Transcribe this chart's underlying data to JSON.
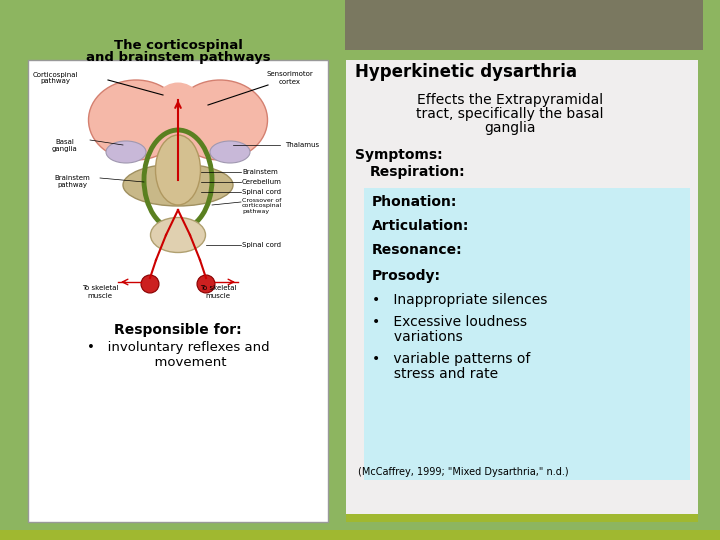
{
  "background_color": "#8db560",
  "header_bar_color": "#7a7860",
  "title": "Hyperkinetic dysarthria",
  "subtitle_line1": "Effects the Extrapyramidal",
  "subtitle_line2": "tract, specifically the basal",
  "subtitle_line3": "ganglia",
  "symptoms_header": "Symptoms:",
  "respiration": "   Respiration:",
  "light_blue_box_color": "#c8eef5",
  "right_panel_bg": "#f0eeee",
  "citation": "(McCaffrey, 1999; \"Mixed Dysarthria,\" n.d.)",
  "bottom_bar_color": "#a0b830",
  "left_panel_bg": "#ffffff",
  "left_title1": "The corticospinal",
  "left_title2": "and brainstem pathways",
  "responsible_header": "Responsible for:",
  "responsible_bullet1": "•   involuntary reflexes and",
  "responsible_bullet2": "      movement",
  "title_fontsize": 12,
  "subtitle_fontsize": 10,
  "body_fontsize": 10,
  "small_fontsize": 7,
  "diagram_label_fontsize": 5
}
